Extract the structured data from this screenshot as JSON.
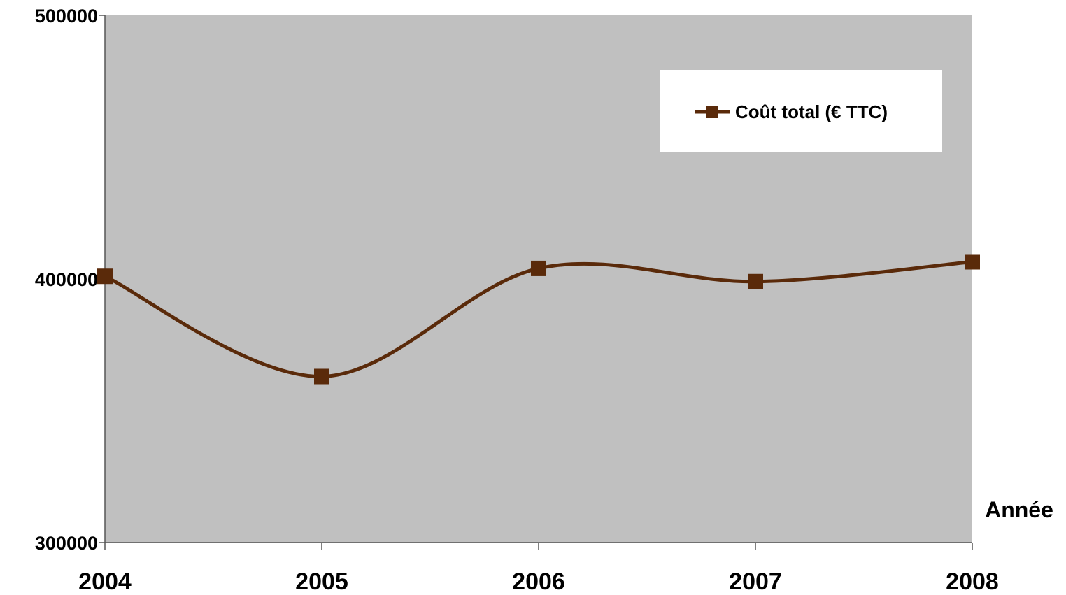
{
  "chart_data": {
    "type": "line",
    "title": "",
    "xlabel": "Année",
    "ylabel": "",
    "x": [
      "2004",
      "2005",
      "2006",
      "2007",
      "2008"
    ],
    "ylim": [
      300000,
      500000
    ],
    "yticks": [
      "300000",
      "400000",
      "500000"
    ],
    "grid": false,
    "smooth": true,
    "legend_position": "top-right",
    "plot_background": "#c0c0c0",
    "series": [
      {
        "name": "Coût total (€ TTC)",
        "color": "#5a2a0a",
        "marker": "square",
        "values": [
          401000,
          363000,
          404000,
          399000,
          406500
        ]
      }
    ]
  }
}
